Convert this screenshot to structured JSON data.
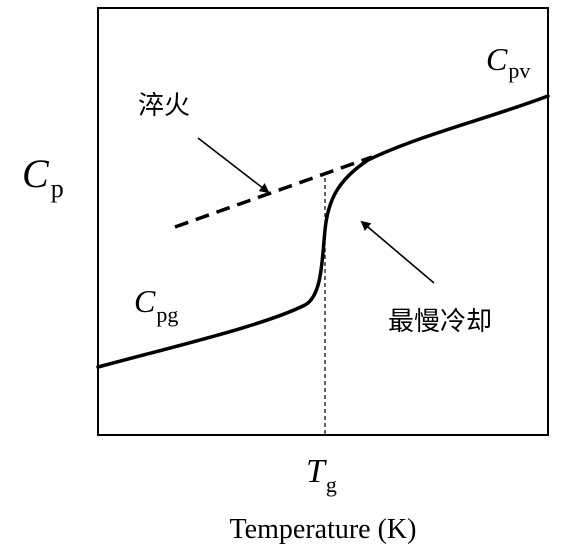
{
  "labels": {
    "y_axis_symbol": "C",
    "y_axis_subscript": "p",
    "tg_symbol": "T",
    "tg_subscript": "g",
    "x_axis_label": "Temperature (K)",
    "glass_curve_symbol": "C",
    "glass_curve_subscript": "pg",
    "liquid_curve_symbol": "C",
    "liquid_curve_subscript": "pv",
    "quench_label": "淬火",
    "slow_cool_label": "最慢冷却"
  },
  "colors": {
    "line": "#000000",
    "background": "#ffffff"
  }
}
